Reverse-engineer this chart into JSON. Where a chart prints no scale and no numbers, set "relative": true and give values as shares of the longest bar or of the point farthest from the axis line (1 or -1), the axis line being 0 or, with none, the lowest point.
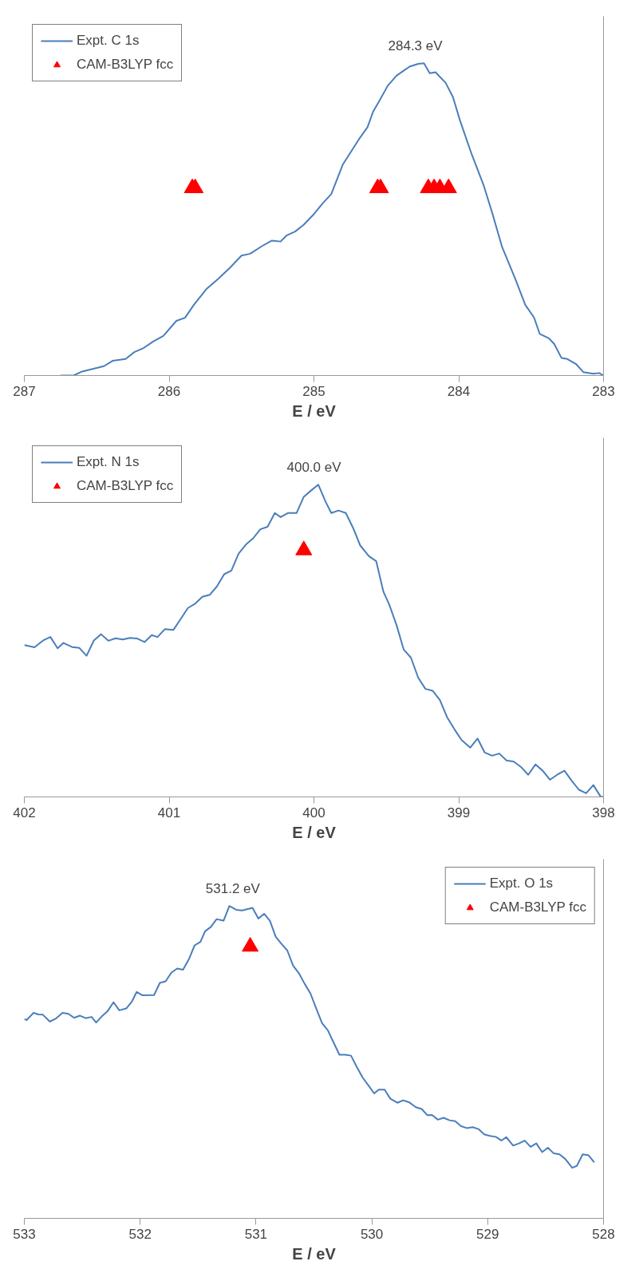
{
  "chart_data": [
    {
      "type": "line",
      "xlabel": "E / eV",
      "relative": true,
      "xlim": [
        287,
        283
      ],
      "xticks": [
        287,
        286,
        285,
        284,
        283
      ],
      "grid": false,
      "legend": "top left",
      "annotations": [
        {
          "text": "284.3 eV",
          "x": 284.3,
          "y": 1
        }
      ],
      "series": [
        {
          "name": "Expt. C 1s",
          "color": "#4a7ebb",
          "line_style": "solid",
          "marker": "none",
          "x": [
            286.75,
            286.66,
            286.6,
            286.45,
            286.39,
            286.3,
            286.24,
            286.18,
            286.11,
            286.04,
            285.95,
            285.89,
            285.83,
            285.74,
            285.66,
            285.58,
            285.5,
            285.44,
            285.36,
            285.29,
            285.23,
            285.19,
            285.13,
            285.07,
            285.0,
            284.94,
            284.88,
            284.8,
            284.69,
            284.63,
            284.59,
            284.55,
            284.49,
            284.43,
            284.34,
            284.28,
            284.24,
            284.2,
            284.16,
            284.09,
            284.04,
            283.99,
            283.91,
            283.83,
            283.77,
            283.7,
            283.61,
            283.54,
            283.48,
            283.44,
            283.38,
            283.34,
            283.29,
            283.25,
            283.19,
            283.14,
            283.07,
            283.03,
            283.0
          ],
          "values": [
            0,
            0,
            0.013,
            0.03,
            0.047,
            0.053,
            0.075,
            0.087,
            0.109,
            0.127,
            0.175,
            0.185,
            0.226,
            0.278,
            0.31,
            0.345,
            0.384,
            0.39,
            0.414,
            0.432,
            0.429,
            0.448,
            0.461,
            0.483,
            0.517,
            0.551,
            0.581,
            0.676,
            0.756,
            0.795,
            0.846,
            0.878,
            0.928,
            0.96,
            0.989,
            0.998,
            1.0,
            0.968,
            0.971,
            0.937,
            0.892,
            0.815,
            0.708,
            0.612,
            0.523,
            0.411,
            0.31,
            0.226,
            0.186,
            0.133,
            0.12,
            0.101,
            0.056,
            0.053,
            0.037,
            0.011,
            0.006,
            0.008,
            0
          ]
        },
        {
          "name": "CAM-B3LYP fcc",
          "type": "scatter",
          "color": "#ff0000",
          "marker": "triangle",
          "x": [
            285.84,
            285.82,
            284.56,
            284.54,
            284.21,
            284.17,
            284.13,
            284.07
          ],
          "values": [
            0.6,
            0.6,
            0.6,
            0.6,
            0.6,
            0.6,
            0.6,
            0.6
          ]
        }
      ]
    },
    {
      "type": "line",
      "xlabel": "E / eV",
      "relative": true,
      "xlim": [
        402,
        398
      ],
      "xticks": [
        402,
        401,
        400,
        399,
        398
      ],
      "grid": false,
      "legend": "top left",
      "annotations": [
        {
          "text": "400.0 eV",
          "x": 400.0,
          "y": 1
        }
      ],
      "series": [
        {
          "name": "Expt. N 1s",
          "color": "#4a7ebb",
          "line_style": "solid",
          "marker": "none",
          "x": [
            402.0,
            401.93,
            401.87,
            401.82,
            401.77,
            401.73,
            401.67,
            401.62,
            401.57,
            401.52,
            401.47,
            401.42,
            401.37,
            401.32,
            401.27,
            401.22,
            401.17,
            401.12,
            401.08,
            401.03,
            400.97,
            400.92,
            400.87,
            400.82,
            400.77,
            400.72,
            400.67,
            400.62,
            400.57,
            400.52,
            400.47,
            400.42,
            400.37,
            400.32,
            400.27,
            400.23,
            400.18,
            400.12,
            400.07,
            400.02,
            399.97,
            399.92,
            399.88,
            399.83,
            399.78,
            399.73,
            399.68,
            399.62,
            399.57,
            399.52,
            399.48,
            399.43,
            399.38,
            399.33,
            399.28,
            399.23,
            399.18,
            399.13,
            399.08,
            399.03,
            398.98,
            398.92,
            398.87,
            398.82,
            398.77,
            398.72,
            398.67,
            398.62,
            398.57,
            398.52,
            398.47,
            398.42,
            398.37,
            398.32,
            398.27,
            398.22,
            398.17,
            398.12,
            398.07,
            398.02,
            398.0
          ],
          "values": [
            0.486,
            0.479,
            0.501,
            0.512,
            0.476,
            0.493,
            0.48,
            0.477,
            0.452,
            0.501,
            0.521,
            0.5,
            0.508,
            0.504,
            0.509,
            0.507,
            0.496,
            0.518,
            0.512,
            0.537,
            0.535,
            0.57,
            0.605,
            0.619,
            0.641,
            0.647,
            0.674,
            0.713,
            0.725,
            0.779,
            0.808,
            0.828,
            0.857,
            0.865,
            0.909,
            0.896,
            0.909,
            0.909,
            0.961,
            0.981,
            1.0,
            0.946,
            0.909,
            0.917,
            0.909,
            0.862,
            0.805,
            0.771,
            0.755,
            0.657,
            0.616,
            0.551,
            0.472,
            0.446,
            0.382,
            0.346,
            0.34,
            0.31,
            0.255,
            0.217,
            0.182,
            0.158,
            0.187,
            0.142,
            0.132,
            0.139,
            0.117,
            0.113,
            0.096,
            0.071,
            0.104,
            0.084,
            0.055,
            0.071,
            0.084,
            0.052,
            0.023,
            0.012,
            0.038,
            0.001,
            0
          ]
        },
        {
          "name": "CAM-B3LYP fcc",
          "type": "scatter",
          "color": "#ff0000",
          "marker": "triangle",
          "x": [
            400.07
          ],
          "values": [
            0.79
          ]
        }
      ]
    },
    {
      "type": "line",
      "xlabel": "E / eV",
      "relative": true,
      "xlim": [
        533,
        528
      ],
      "xticks": [
        533,
        532,
        531,
        530,
        529,
        528
      ],
      "grid": false,
      "legend": "top right",
      "annotations": [
        {
          "text": "531.2 eV",
          "x": 531.2,
          "y": 1
        }
      ],
      "series": [
        {
          "name": "Expt. O 1s",
          "color": "#4a7ebb",
          "line_style": "solid",
          "marker": "none",
          "x": [
            533.0,
            532.98,
            532.92,
            532.88,
            532.84,
            532.78,
            532.73,
            532.67,
            532.62,
            532.57,
            532.52,
            532.47,
            532.42,
            532.38,
            532.33,
            532.28,
            532.23,
            532.18,
            532.12,
            532.07,
            532.03,
            531.98,
            531.88,
            531.83,
            531.78,
            531.73,
            531.68,
            531.63,
            531.58,
            531.53,
            531.48,
            531.44,
            531.39,
            531.34,
            531.28,
            531.23,
            531.17,
            531.12,
            531.03,
            530.98,
            530.93,
            530.88,
            530.83,
            530.78,
            530.73,
            530.68,
            530.63,
            530.58,
            530.53,
            530.48,
            530.43,
            530.38,
            530.33,
            530.28,
            530.23,
            530.18,
            530.13,
            530.08,
            530.03,
            529.98,
            529.94,
            529.89,
            529.84,
            529.78,
            529.73,
            529.68,
            529.62,
            529.57,
            529.52,
            529.48,
            529.43,
            529.38,
            529.33,
            529.28,
            529.23,
            529.18,
            529.13,
            529.08,
            529.03,
            528.98,
            528.93,
            528.88,
            528.84,
            528.78,
            528.73,
            528.68,
            528.63,
            528.58,
            528.53,
            528.48,
            528.43,
            528.38,
            528.33,
            528.27,
            528.23,
            528.18,
            528.13,
            528.08
          ],
          "values": [
            0.638,
            0.635,
            0.658,
            0.653,
            0.652,
            0.63,
            0.639,
            0.658,
            0.655,
            0.642,
            0.649,
            0.641,
            0.645,
            0.627,
            0.647,
            0.664,
            0.692,
            0.666,
            0.672,
            0.695,
            0.725,
            0.714,
            0.715,
            0.754,
            0.759,
            0.787,
            0.8,
            0.796,
            0.829,
            0.874,
            0.885,
            0.919,
            0.933,
            0.958,
            0.953,
            1.0,
            0.988,
            0.986,
            0.994,
            0.96,
            0.975,
            0.953,
            0.902,
            0.879,
            0.858,
            0.809,
            0.785,
            0.751,
            0.72,
            0.672,
            0.625,
            0.602,
            0.563,
            0.524,
            0.524,
            0.521,
            0.485,
            0.451,
            0.426,
            0.4,
            0.412,
            0.412,
            0.383,
            0.37,
            0.378,
            0.372,
            0.356,
            0.35,
            0.33,
            0.331,
            0.316,
            0.322,
            0.314,
            0.311,
            0.295,
            0.289,
            0.292,
            0.286,
            0.269,
            0.264,
            0.261,
            0.249,
            0.26,
            0.233,
            0.24,
            0.249,
            0.229,
            0.24,
            0.212,
            0.226,
            0.208,
            0.205,
            0.19,
            0.162,
            0.168,
            0.205,
            0.202,
            0.179
          ]
        },
        {
          "name": "CAM-B3LYP fcc",
          "type": "scatter",
          "color": "#ff0000",
          "marker": "triangle",
          "x": [
            531.05
          ],
          "values": [
            0.87
          ]
        }
      ]
    }
  ]
}
